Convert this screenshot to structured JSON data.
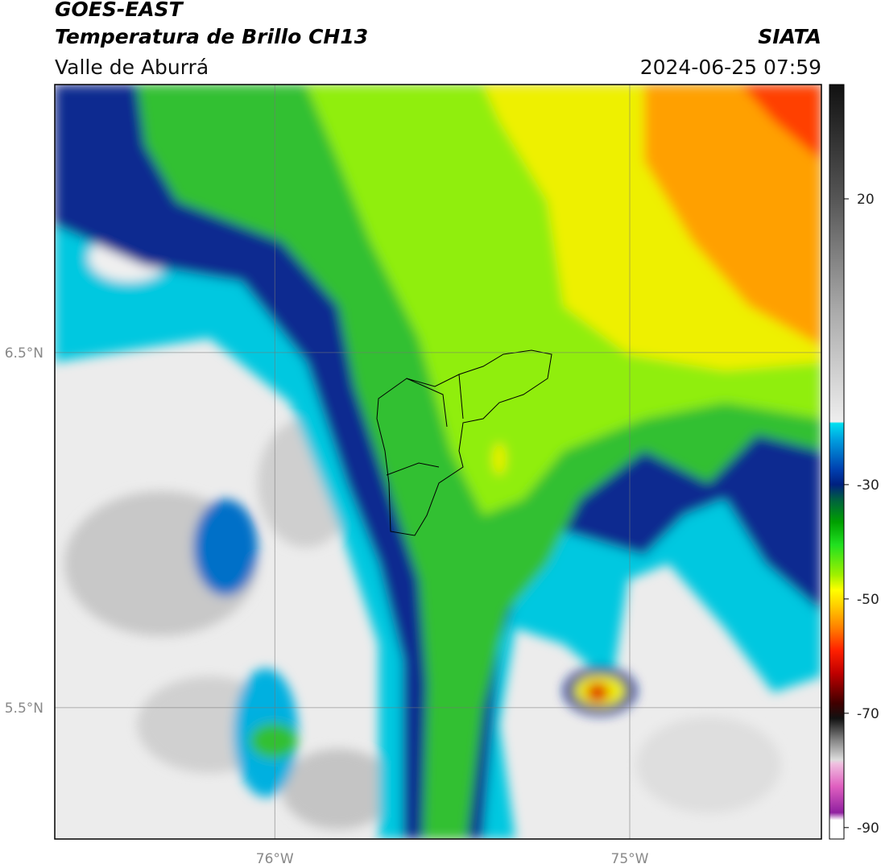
{
  "header": {
    "title": "GOES-EAST",
    "subtitle": "Temperatura de Brillo CH13",
    "region": "Valle de Aburrá",
    "source": "SIATA",
    "timestamp": "2024-06-25 07:59"
  },
  "map": {
    "xlim": [
      -76.62,
      -74.46
    ],
    "ylim": [
      5.13,
      7.255
    ],
    "xticks": [
      {
        "value": -76,
        "label": "76°W"
      },
      {
        "value": -75,
        "label": "75°W"
      }
    ],
    "yticks": [
      {
        "value": 6.5,
        "label": "6.5°N"
      },
      {
        "value": 5.5,
        "label": "5.5°N"
      }
    ],
    "grid": true
  },
  "colorbar": {
    "lim": [
      -92,
      40
    ],
    "ticks": [
      20,
      -30,
      -50,
      -70,
      -90
    ]
  }
}
